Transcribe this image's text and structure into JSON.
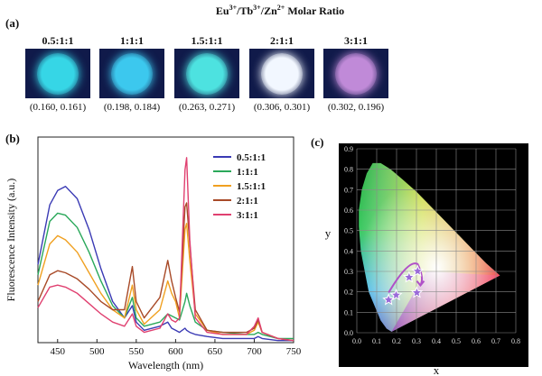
{
  "panel_a": {
    "tag": "(a)",
    "title_prefix": "Eu",
    "title_sup1": "3+",
    "title_mid1": "/Tb",
    "title_sup2": "3+",
    "title_mid2": "/Zn",
    "title_sup3": "2+",
    "title_suffix": " Molar Ratio",
    "samples": [
      {
        "ratio": "0.5:1:1",
        "coord": "(0.160, 0.161)",
        "color": "#36d6e6"
      },
      {
        "ratio": "1:1:1",
        "coord": "(0.198, 0.184)",
        "color": "#3cc8ee"
      },
      {
        "ratio": "1.5:1:1",
        "coord": "(0.263, 0.271)",
        "color": "#4de2e0"
      },
      {
        "ratio": "2:1:1",
        "coord": "(0.306, 0.301)",
        "color": "#f2f7ff"
      },
      {
        "ratio": "3:1:1",
        "coord": "(0.302, 0.196)",
        "color": "#c08ad8"
      }
    ]
  },
  "panel_b_tag": "(b)",
  "panel_c_tag": "(c)",
  "chart_data": [
    {
      "type": "line",
      "xlabel": "Wavelength (nm)",
      "ylabel": "Fluorescence Intensity (a.u.)",
      "xlim": [
        425,
        750
      ],
      "xticks": [
        450,
        500,
        550,
        600,
        650,
        700,
        750
      ],
      "ylim": [
        0,
        1.0
      ],
      "legend": "top-right",
      "x": [
        425,
        440,
        450,
        460,
        475,
        490,
        505,
        520,
        535,
        545,
        550,
        560,
        580,
        590,
        595,
        600,
        605,
        612,
        614,
        618,
        625,
        640,
        660,
        690,
        700,
        705,
        710,
        730,
        750
      ],
      "series": [
        {
          "name": "0.5:1:1",
          "color": "#3a3ab4",
          "values": [
            0.38,
            0.67,
            0.74,
            0.76,
            0.7,
            0.55,
            0.36,
            0.2,
            0.12,
            0.18,
            0.1,
            0.06,
            0.08,
            0.1,
            0.07,
            0.06,
            0.05,
            0.07,
            0.06,
            0.05,
            0.04,
            0.03,
            0.02,
            0.02,
            0.02,
            0.03,
            0.02,
            0.01,
            0.01
          ]
        },
        {
          "name": "1:1:1",
          "color": "#2aa85a",
          "values": [
            0.33,
            0.59,
            0.63,
            0.62,
            0.56,
            0.44,
            0.3,
            0.18,
            0.12,
            0.22,
            0.12,
            0.08,
            0.1,
            0.14,
            0.13,
            0.12,
            0.11,
            0.2,
            0.24,
            0.18,
            0.1,
            0.06,
            0.05,
            0.04,
            0.04,
            0.05,
            0.04,
            0.02,
            0.02
          ]
        },
        {
          "name": "1.5:1:1",
          "color": "#f0a020",
          "values": [
            0.28,
            0.48,
            0.52,
            0.5,
            0.44,
            0.34,
            0.24,
            0.16,
            0.12,
            0.28,
            0.16,
            0.09,
            0.16,
            0.3,
            0.24,
            0.2,
            0.12,
            0.55,
            0.58,
            0.4,
            0.14,
            0.06,
            0.04,
            0.04,
            0.06,
            0.1,
            0.05,
            0.02,
            0.01
          ]
        },
        {
          "name": "2:1:1",
          "color": "#a84a28",
          "values": [
            0.2,
            0.33,
            0.35,
            0.34,
            0.31,
            0.26,
            0.2,
            0.16,
            0.16,
            0.37,
            0.2,
            0.12,
            0.22,
            0.4,
            0.3,
            0.22,
            0.15,
            0.66,
            0.68,
            0.48,
            0.16,
            0.06,
            0.05,
            0.05,
            0.07,
            0.11,
            0.05,
            0.02,
            0.01
          ]
        },
        {
          "name": "3:1:1",
          "color": "#e04070",
          "values": [
            0.17,
            0.27,
            0.28,
            0.27,
            0.24,
            0.19,
            0.14,
            0.1,
            0.08,
            0.14,
            0.08,
            0.05,
            0.07,
            0.14,
            0.11,
            0.1,
            0.12,
            0.84,
            0.9,
            0.5,
            0.12,
            0.05,
            0.04,
            0.04,
            0.08,
            0.12,
            0.05,
            0.02,
            0.01
          ]
        }
      ]
    },
    {
      "type": "scatter",
      "xlabel": "x",
      "ylabel": "y",
      "xlim": [
        0,
        0.8
      ],
      "ylim": [
        0,
        0.9
      ],
      "xticks": [
        "0.0",
        "0.1",
        "0.2",
        "0.3",
        "0.4",
        "0.5",
        "0.6",
        "0.7",
        "0.8"
      ],
      "yticks": [
        "0.0",
        "0.1",
        "0.2",
        "0.3",
        "0.4",
        "0.5",
        "0.6",
        "0.7",
        "0.8",
        "0.9"
      ],
      "points": [
        {
          "x": 0.16,
          "y": 0.161
        },
        {
          "x": 0.198,
          "y": 0.184
        },
        {
          "x": 0.263,
          "y": 0.271
        },
        {
          "x": 0.306,
          "y": 0.301
        },
        {
          "x": 0.302,
          "y": 0.196
        }
      ]
    }
  ]
}
